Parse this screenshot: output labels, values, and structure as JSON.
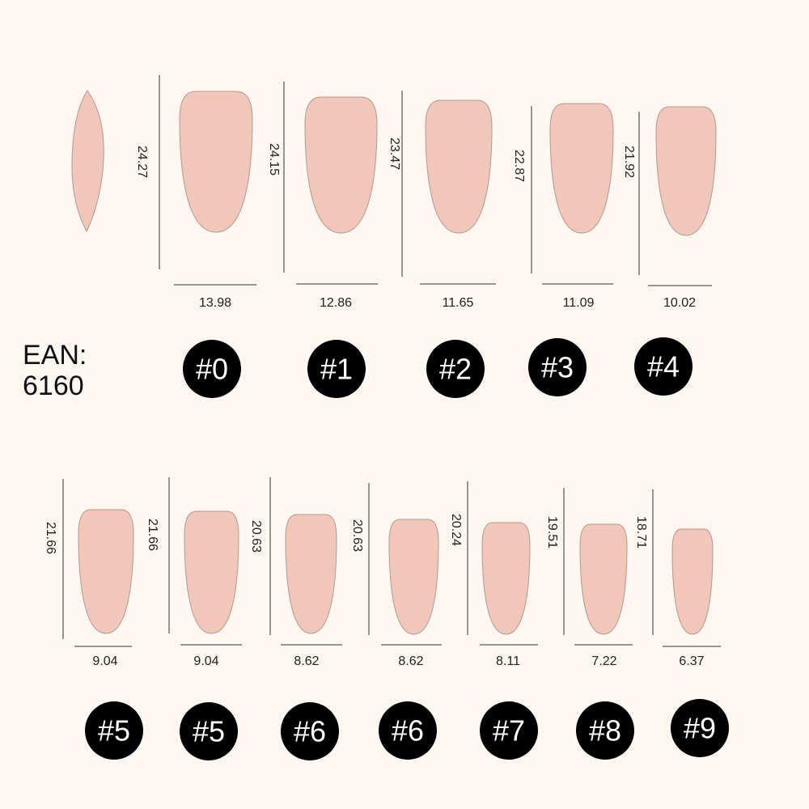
{
  "ean_label": "EAN:",
  "ean_code": "6160",
  "rows": [
    {
      "nails": [
        {
          "size": "#0",
          "height": "24.27",
          "width": "13.98"
        },
        {
          "size": "#1",
          "height": "24.15",
          "width": "12.86"
        },
        {
          "size": "#2",
          "height": "23.47",
          "width": "11.65"
        },
        {
          "size": "#3",
          "height": "22.87",
          "width": "11.09"
        },
        {
          "size": "#4",
          "height": "21.92",
          "width": "10.02"
        }
      ]
    },
    {
      "nails": [
        {
          "size": "#5",
          "height": "21.66",
          "width": "9.04"
        },
        {
          "size": "#5",
          "height": "21.66",
          "width": "9.04"
        },
        {
          "size": "#6",
          "height": "20.63",
          "width": "8.62"
        },
        {
          "size": "#6",
          "height": "20.63",
          "width": "8.62"
        },
        {
          "size": "#7",
          "height": "20.24",
          "width": "8.11"
        },
        {
          "size": "#8",
          "height": "19.51",
          "width": "7.22"
        },
        {
          "size": "#9",
          "height": "18.71",
          "width": "6.37"
        }
      ]
    }
  ]
}
